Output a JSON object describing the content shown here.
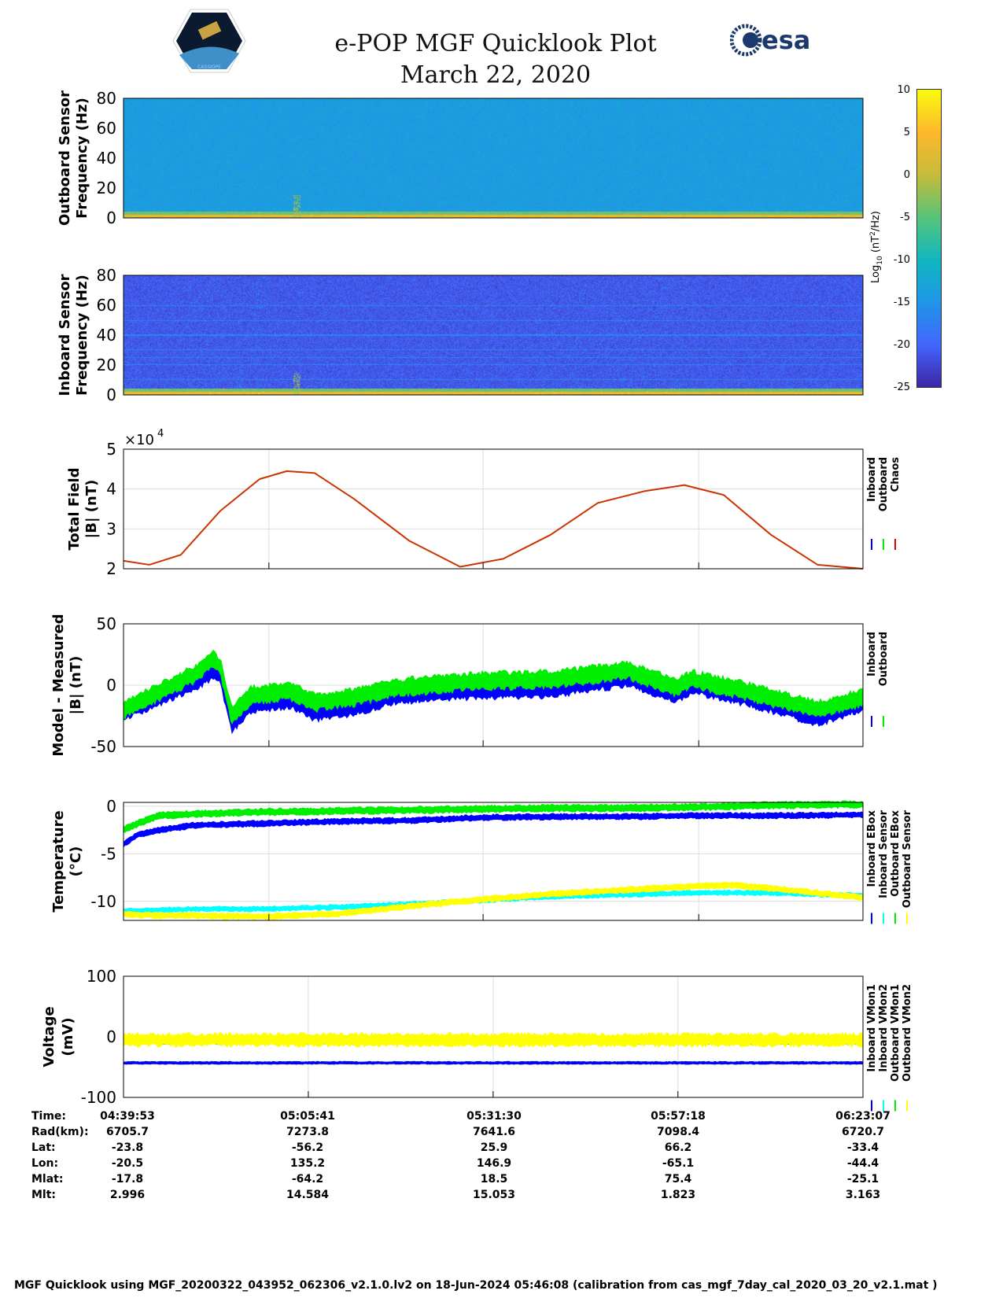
{
  "header": {
    "title": "e-POP MGF Quicklook Plot",
    "date": "March 22, 2020",
    "logo_left": "CASSIOPE",
    "logo_right": "esa"
  },
  "colorbar": {
    "label_main": "Log",
    "label_sub": "10",
    "label_unit": " (nT",
    "label_sup": "2",
    "label_end": "/Hz)",
    "ticks": [
      10,
      5,
      0,
      -5,
      -10,
      -15,
      -20,
      -25
    ],
    "range": [
      -25,
      10
    ],
    "colormap": [
      "#3e26a8",
      "#4367fd",
      "#1f96e8",
      "#11b7bf",
      "#58c47a",
      "#c6bb3a",
      "#feb82c",
      "#f9fb0e"
    ]
  },
  "chart_data": [
    {
      "type": "heatmap",
      "id": "outboard-spectrogram",
      "ylabel": [
        "Outboard Sensor",
        "Frequency (Hz)"
      ],
      "ylim": [
        0,
        80
      ],
      "yticks": [
        0,
        20,
        40,
        60,
        80
      ],
      "background_level": -14,
      "low_freq_level": 3
    },
    {
      "type": "heatmap",
      "id": "inboard-spectrogram",
      "ylabel": [
        "Inboard Sensor",
        "Frequency (Hz)"
      ],
      "ylim": [
        0,
        80
      ],
      "yticks": [
        0,
        20,
        40,
        60,
        80
      ],
      "background_level": -21,
      "low_freq_level": 3,
      "tone_lines_hz": [
        10,
        20,
        25,
        30,
        40,
        50,
        60
      ]
    },
    {
      "type": "line",
      "id": "total-field",
      "ylabel": [
        "Total Field",
        "|B| (nT)"
      ],
      "ylim": [
        2,
        5
      ],
      "yticks": [
        2,
        3,
        4,
        5
      ],
      "exponent_label": "×10",
      "exponent": "4",
      "xlim": [
        0,
        103.23
      ],
      "xgrid": [
        20.3,
        50.2,
        80.3
      ],
      "legend": [
        "Inboard",
        "Outboard",
        "Chaos"
      ],
      "legend_colors": [
        "#0000ff",
        "#00ee00",
        "#dd0000"
      ],
      "x": [
        0,
        3.6,
        8.0,
        13.5,
        19.0,
        22.8,
        26.7,
        32.2,
        39.9,
        47.0,
        53.0,
        59.6,
        66.2,
        72.8,
        78.3,
        83.8,
        90.4,
        96.9,
        103.2
      ],
      "series": [
        {
          "name": "Chaos",
          "color": "#cc3300",
          "values": [
            2.2,
            2.1,
            2.35,
            3.45,
            4.25,
            4.45,
            4.4,
            3.75,
            2.7,
            2.05,
            2.25,
            2.85,
            3.65,
            3.95,
            4.1,
            3.85,
            2.85,
            2.1,
            2.0
          ]
        }
      ]
    },
    {
      "type": "line",
      "id": "model-minus-measured",
      "ylabel": [
        "Model - Measured",
        "|B| (nT)"
      ],
      "ylim": [
        -50,
        50
      ],
      "yticks": [
        -50,
        0,
        50
      ],
      "xlim": [
        0,
        103.23
      ],
      "xgrid": [
        20.3,
        50.2,
        80.3
      ],
      "legend": [
        "Inboard",
        "Outboard"
      ],
      "legend_colors": [
        "#0000ff",
        "#00ee00"
      ],
      "x": [
        0,
        10.2,
        12.4,
        13.5,
        15.1,
        17.9,
        23.4,
        26.7,
        32.2,
        37.7,
        48.7,
        59.6,
        70.6,
        77.2,
        79.4,
        87.1,
        96.9,
        103.2
      ],
      "series": [
        {
          "name": "Inboard",
          "color": "#0000ff",
          "values": [
            -22,
            3,
            12,
            8,
            -32,
            -15,
            -12,
            -22,
            -18,
            -8,
            -4,
            -3,
            6,
            -8,
            0,
            -10,
            -26,
            -14
          ],
          "spread": 7
        },
        {
          "name": "Outboard",
          "color": "#00ee00",
          "values": [
            -20,
            10,
            22,
            15,
            -25,
            -8,
            -5,
            -14,
            -10,
            -2,
            3,
            5,
            12,
            -2,
            5,
            -5,
            -20,
            -10
          ],
          "spread": 7
        }
      ]
    },
    {
      "type": "line",
      "id": "temperature",
      "ylabel": [
        "Temperature",
        "(°C)"
      ],
      "ylim": [
        -12,
        0.4
      ],
      "yticks": [
        -10,
        -5,
        0
      ],
      "xlim": [
        0,
        103.23
      ],
      "xgrid": [
        20.3,
        50.2,
        80.3
      ],
      "legend": [
        "Inboard EBox",
        "Inboard Sensor",
        "Outboard EBox",
        "Outboard Sensor"
      ],
      "legend_colors": [
        "#0000ff",
        "#00ffff",
        "#00ee00",
        "#ffff00"
      ],
      "x": [
        0,
        2,
        5,
        10,
        20,
        30,
        40,
        50,
        60,
        70,
        80,
        85,
        90,
        103.2
      ],
      "series": [
        {
          "name": "Inboard EBox",
          "color": "#0000ff",
          "values": [
            -4,
            -3,
            -2.5,
            -2,
            -1.8,
            -1.6,
            -1.5,
            -1.2,
            -1.1,
            -1.1,
            -1.0,
            -1.0,
            -1.0,
            -0.9
          ],
          "spread": 0.3
        },
        {
          "name": "Inboard Sensor",
          "color": "#00ffff",
          "values": [
            -11,
            -11,
            -10.9,
            -10.8,
            -10.8,
            -10.6,
            -10.3,
            -9.9,
            -9.5,
            -9.3,
            -9.1,
            -9.1,
            -9.1,
            -9.4
          ],
          "spread": 0.25
        },
        {
          "name": "Outboard EBox",
          "color": "#00ee00",
          "values": [
            -2.5,
            -1.8,
            -1.0,
            -0.8,
            -0.6,
            -0.5,
            -0.4,
            -0.3,
            -0.2,
            -0.2,
            -0.1,
            0,
            0.1,
            0.2
          ],
          "spread": 0.35
        },
        {
          "name": "Outboard Sensor",
          "color": "#ffff00",
          "values": [
            -11.3,
            -11.4,
            -11.5,
            -11.5,
            -11.6,
            -11.3,
            -10.5,
            -9.8,
            -9.2,
            -8.8,
            -8.4,
            -8.3,
            -8.6,
            -9.6
          ],
          "spread": 0.3
        }
      ]
    },
    {
      "type": "line",
      "id": "voltage",
      "ylabel": [
        "Voltage",
        "(mV)"
      ],
      "ylim": [
        -100,
        100
      ],
      "yticks": [
        -100,
        0,
        100
      ],
      "xlim": [
        0,
        103.23
      ],
      "xgrid": [
        25.8,
        51.6,
        77.4
      ],
      "legend": [
        "Inboard VMon1",
        "Inboard VMon2",
        "Outboard VMon1",
        "Outboard VMon2"
      ],
      "legend_colors": [
        "#0000ff",
        "#00ffff",
        "#00ee00",
        "#ffff00"
      ],
      "x": [
        0,
        20,
        40,
        60,
        83,
        103.2
      ],
      "series": [
        {
          "name": "Inboard VMon1",
          "color": "#0000ff",
          "values": [
            -43,
            -43,
            -43,
            -43,
            -43,
            -43
          ],
          "spread": 2
        },
        {
          "name": "Inboard VMon2",
          "color": "#00ffff",
          "values": [
            -5,
            -5,
            -5,
            -5,
            -5,
            -5
          ],
          "spread": 1
        },
        {
          "name": "Outboard VMon1",
          "color": "#00ee00",
          "values": [
            -6,
            -6,
            -6,
            -6,
            -6,
            -6
          ],
          "spread": 6
        },
        {
          "name": "Outboard VMon2",
          "color": "#ffff00",
          "values": [
            -5,
            -5,
            -5,
            -5,
            -5,
            -5
          ],
          "spread": 10
        }
      ]
    }
  ],
  "orbit_table": {
    "rows": [
      {
        "label": "Time:",
        "values": [
          "04:39:53",
          "05:05:41",
          "05:31:30",
          "05:57:18",
          "06:23:07"
        ]
      },
      {
        "label": "Rad(km):",
        "values": [
          "6705.7",
          "7273.8",
          "7641.6",
          "7098.4",
          "6720.7"
        ]
      },
      {
        "label": "Lat:",
        "values": [
          "-23.8",
          "-56.2",
          "25.9",
          "66.2",
          "-33.4"
        ]
      },
      {
        "label": "Lon:",
        "values": [
          "-20.5",
          "135.2",
          "146.9",
          "-65.1",
          "-44.4"
        ]
      },
      {
        "label": "Mlat:",
        "values": [
          "-17.8",
          "-64.2",
          "18.5",
          "75.4",
          "-25.1"
        ]
      },
      {
        "label": "Mlt:",
        "values": [
          "2.996",
          "14.584",
          "15.053",
          "1.823",
          "3.163"
        ]
      }
    ]
  },
  "footer": "MGF Quicklook using MGF_20200322_043952_062306_v2.1.0.lv2 on 18-Jun-2024 05:46:08 (calibration from cas_mgf_7day_cal_2020_03_20_v2.1.mat )"
}
